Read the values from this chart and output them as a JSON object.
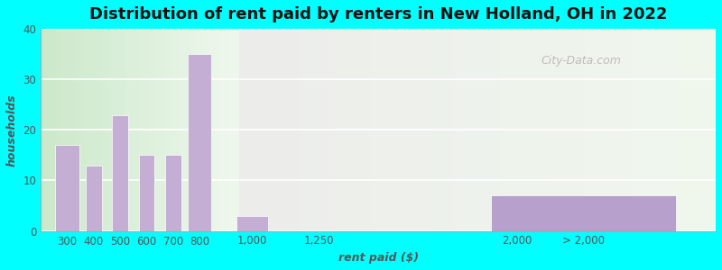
{
  "title": "Distribution of rent paid by renters in New Holland, OH in 2022",
  "xlabel": "rent paid ($)",
  "ylabel": "households",
  "background_outer": "#00ffff",
  "bar_color": "#c4aed4",
  "bar_color_last": "#b8a0cc",
  "ylim": [
    0,
    40
  ],
  "yticks": [
    0,
    10,
    20,
    30,
    40
  ],
  "tick_labels": [
    "300",
    "400",
    "500",
    "600",
    "700",
    "800",
    "1,000",
    "1,250",
    "2,000",
    "> 2,000"
  ],
  "bar_centers": [
    300,
    400,
    500,
    600,
    700,
    800,
    1000,
    1250,
    2000,
    2250
  ],
  "bar_widths": [
    90,
    60,
    60,
    60,
    60,
    90,
    120,
    200,
    0,
    700
  ],
  "bar_values": [
    17,
    13,
    23,
    15,
    15,
    35,
    3,
    0,
    0,
    7
  ],
  "tick_positions": [
    300,
    400,
    500,
    600,
    700,
    800,
    1000,
    1250,
    2000,
    2250
  ],
  "xlim": [
    200,
    2750
  ],
  "green_boundary": 950,
  "watermark": "City-Data.com",
  "title_fontsize": 13,
  "axis_label_fontsize": 9,
  "tick_fontsize": 8.5
}
